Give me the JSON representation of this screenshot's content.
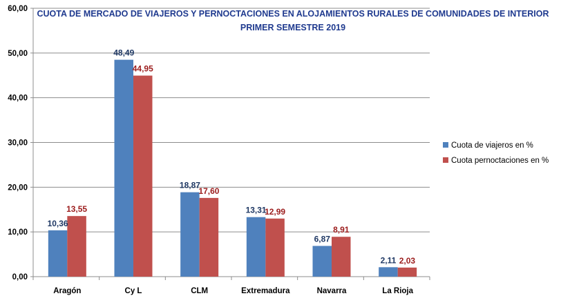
{
  "chart_data": {
    "type": "bar",
    "title_lines": [
      "CUOTA DE MERCADO DE VIAJEROS Y PERNOCTACIONES EN ALOJAMIENTOS RURALES DE COMUNIDADES DE INTERIOR",
      "PRIMER SEMESTRE 2019"
    ],
    "categories": [
      "Aragón",
      "Cy L",
      "CLM",
      "Extremadura",
      "Navarra",
      "La Rioja"
    ],
    "series": [
      {
        "name": "Cuota de viajeros en %",
        "values": [
          10.36,
          48.49,
          18.87,
          13.31,
          6.87,
          2.11
        ],
        "labels": [
          "10,36",
          "48,49",
          "18,87",
          "13,31",
          "6,87",
          "2,11"
        ],
        "color": "#4f81bd",
        "label_color": "#1f3864"
      },
      {
        "name": "Cuota pernoctaciones en %",
        "values": [
          13.55,
          44.95,
          17.6,
          12.99,
          8.91,
          2.03
        ],
        "labels": [
          "13,55",
          "44,95",
          "17,60",
          "12,99",
          "8,91",
          "2,03"
        ],
        "color": "#c0504d",
        "label_color": "#9b1c1c"
      }
    ],
    "ylim": [
      0,
      60
    ],
    "yticks": [
      0,
      10,
      20,
      30,
      40,
      50,
      60
    ],
    "ytick_labels": [
      "0,00",
      "10,00",
      "20,00",
      "30,00",
      "40,00",
      "50,00",
      "60,00"
    ],
    "grid": true,
    "legend_position": "right"
  }
}
